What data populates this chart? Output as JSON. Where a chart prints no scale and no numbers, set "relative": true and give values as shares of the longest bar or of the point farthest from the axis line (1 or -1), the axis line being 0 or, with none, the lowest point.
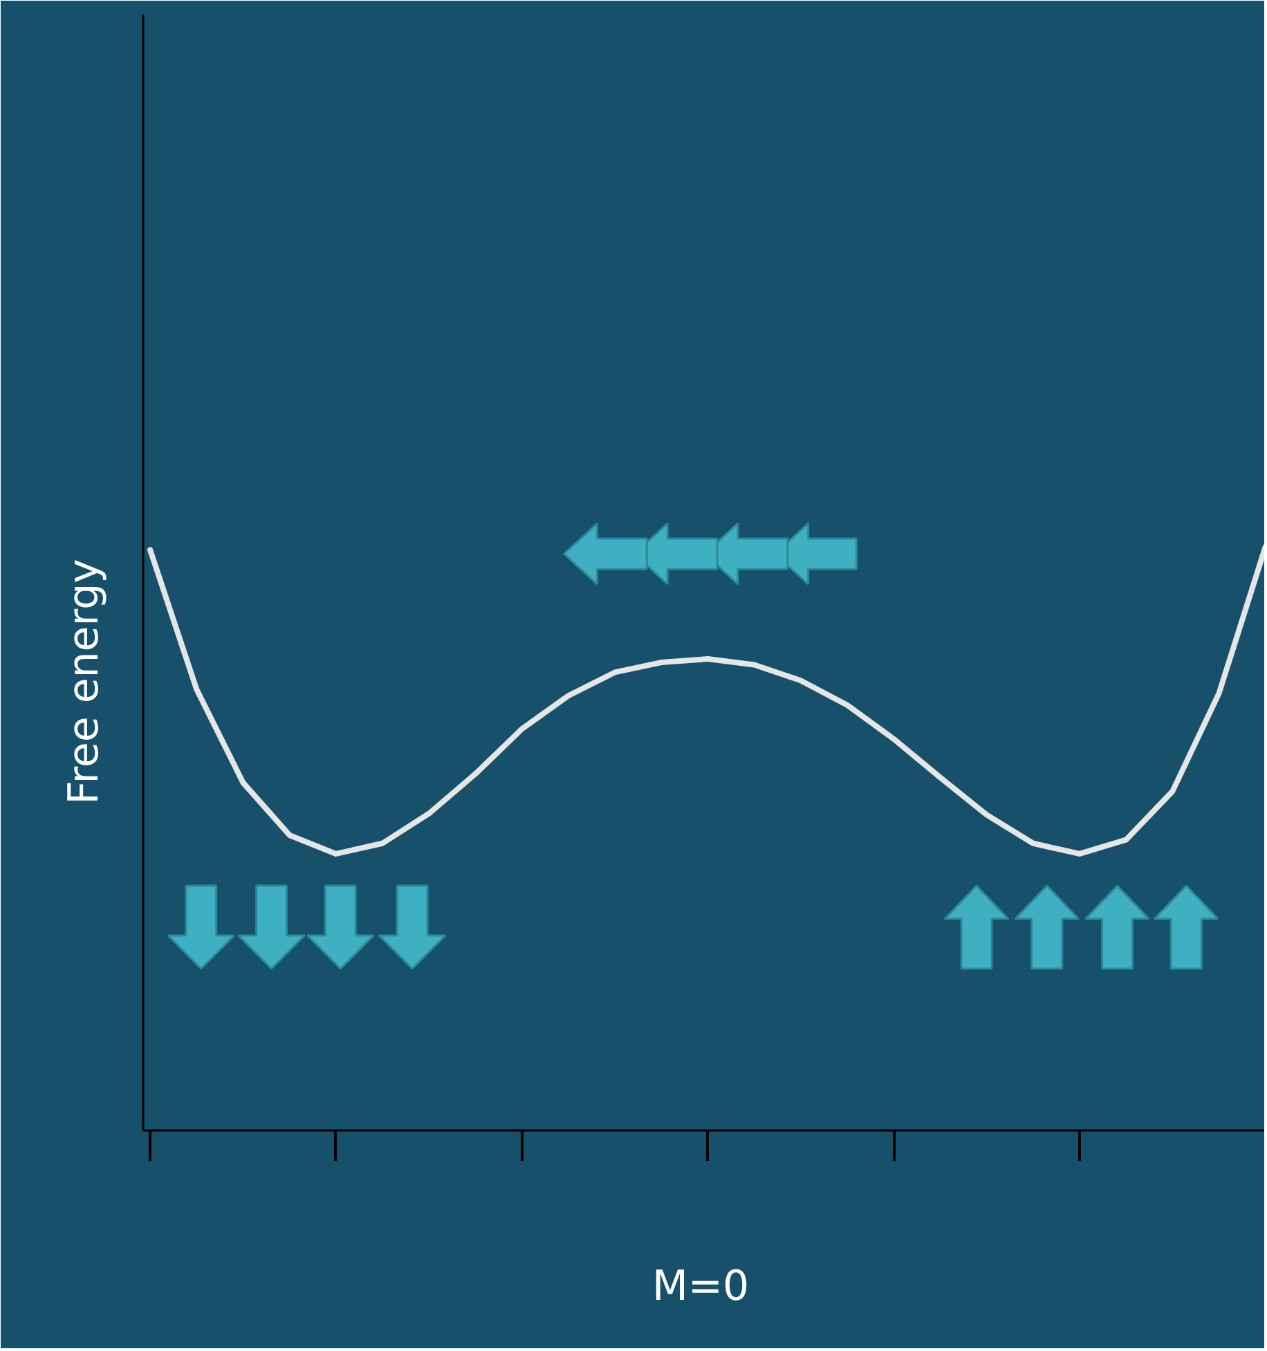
{
  "chart_data": {
    "type": "line",
    "ylabel": "Free energy",
    "xlabel": "M=0",
    "relative": true,
    "color": "#e6e6e6",
    "line_style": "solid",
    "categories": [
      null,
      null,
      null,
      null,
      null,
      null,
      null,
      null,
      null,
      null,
      null,
      null,
      null,
      null,
      null,
      null,
      null,
      null,
      null,
      null,
      null,
      null,
      null,
      null,
      null
    ],
    "values": [
      0.995,
      0.756,
      0.596,
      0.506,
      0.474,
      0.492,
      0.543,
      0.611,
      0.688,
      0.745,
      0.785,
      0.802,
      0.808,
      0.798,
      0.771,
      0.729,
      0.671,
      0.605,
      0.541,
      0.492,
      0.474,
      0.498,
      0.581,
      0.749,
      1.0
    ]
  }
}
